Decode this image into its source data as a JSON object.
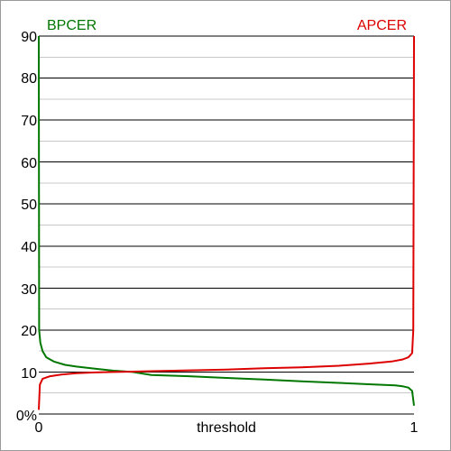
{
  "chart_data": {
    "type": "line",
    "title": "",
    "xlabel": "threshold",
    "ylabel": "",
    "xlim": [
      0,
      1
    ],
    "ylim": [
      0,
      90
    ],
    "grid": true,
    "x_tick_labels": [
      "0",
      "1"
    ],
    "y_tick_labels": [
      "0%",
      "10",
      "20",
      "30",
      "40",
      "50",
      "60",
      "70",
      "80",
      "90"
    ],
    "legend": {
      "left": "BPCER",
      "right": "APCER"
    },
    "series": [
      {
        "name": "BPCER",
        "color": "#007700",
        "x": [
          0,
          0.001,
          0.004,
          0.01,
          0.02,
          0.04,
          0.07,
          0.1,
          0.15,
          0.2,
          0.25,
          0.3,
          0.4,
          0.5,
          0.6,
          0.7,
          0.8,
          0.9,
          0.95,
          0.97,
          0.985,
          0.995,
          1
        ],
        "y": [
          90,
          20,
          17,
          15,
          13.5,
          12.5,
          11.7,
          11.3,
          10.8,
          10.3,
          10.0,
          9.3,
          9.0,
          8.6,
          8.2,
          7.8,
          7.4,
          7.0,
          6.8,
          6.6,
          6.3,
          5.5,
          2
        ]
      },
      {
        "name": "APCER",
        "color": "#dd0000",
        "x": [
          0,
          0.003,
          0.01,
          0.03,
          0.06,
          0.1,
          0.15,
          0.2,
          0.25,
          0.3,
          0.4,
          0.5,
          0.6,
          0.7,
          0.8,
          0.88,
          0.94,
          0.97,
          0.985,
          0.995,
          0.998,
          1
        ],
        "y": [
          1,
          7,
          8.4,
          9.0,
          9.4,
          9.7,
          9.9,
          10.0,
          10.1,
          10.2,
          10.4,
          10.6,
          10.9,
          11.1,
          11.5,
          12.0,
          12.5,
          13.0,
          13.5,
          14.5,
          20,
          90
        ]
      }
    ]
  }
}
